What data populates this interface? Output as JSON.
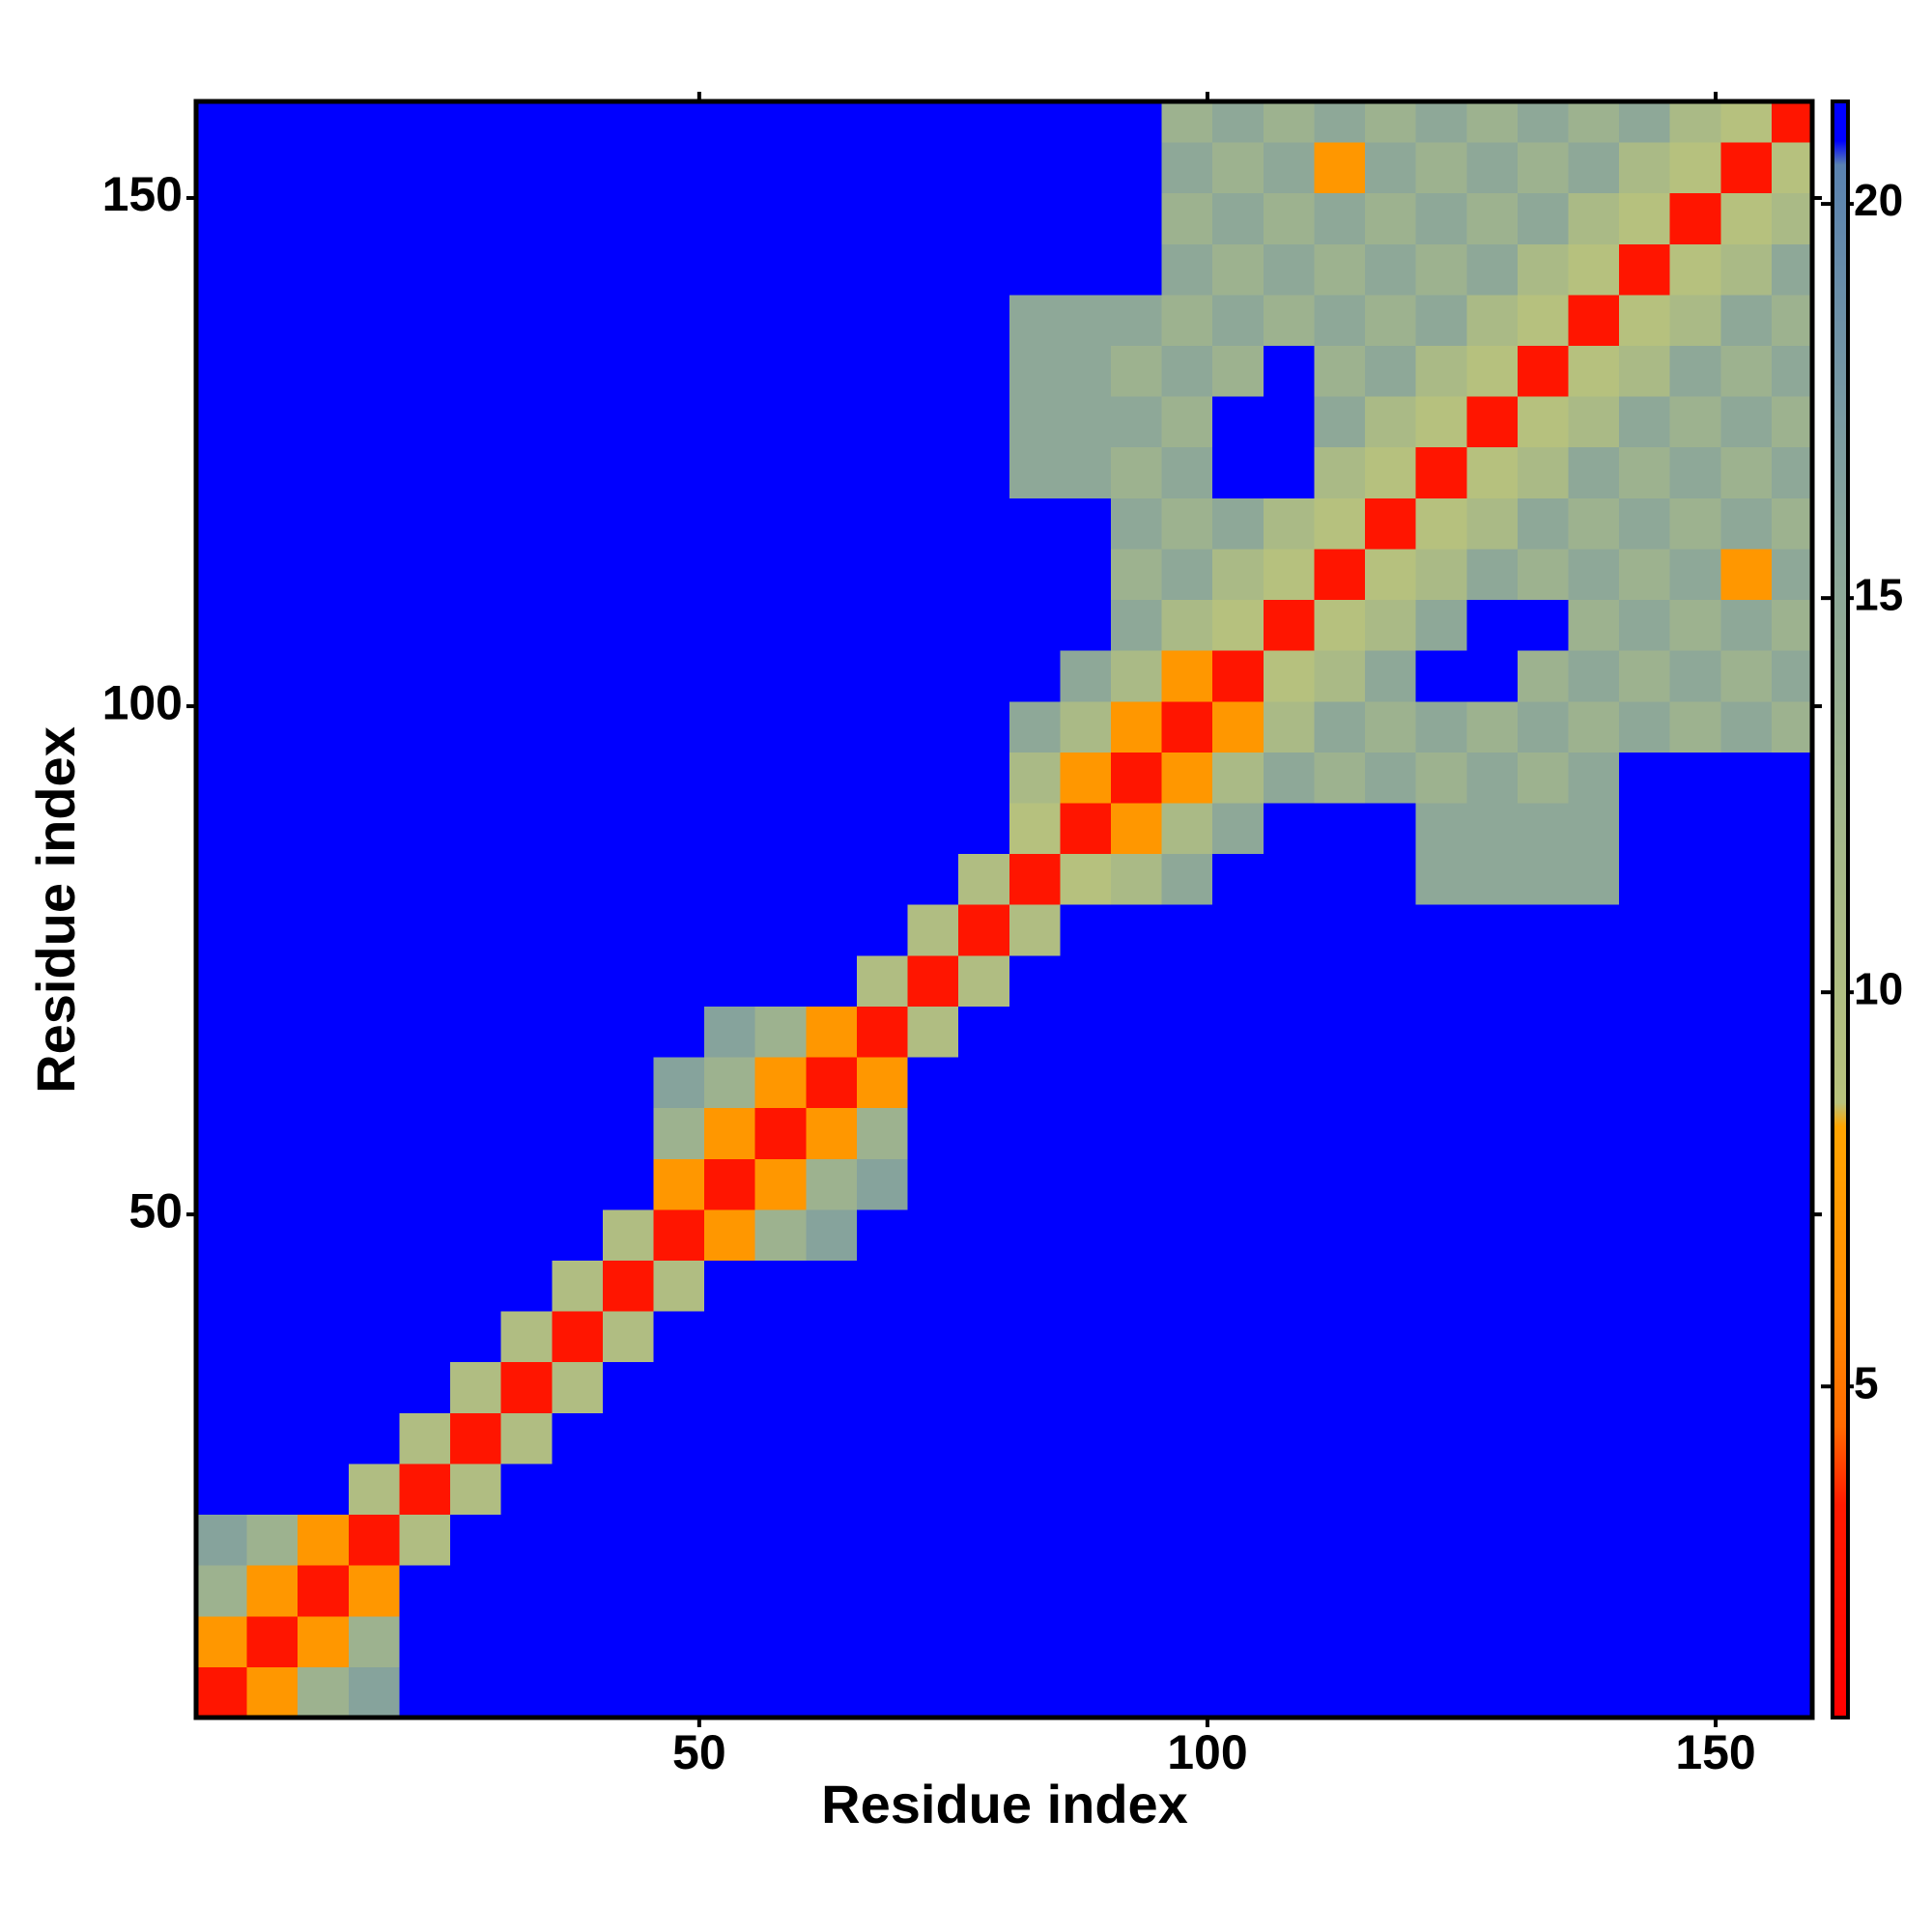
{
  "chart_data": {
    "type": "heatmap",
    "xlabel": "Residue index",
    "ylabel": "Residue index",
    "xlim": [
      0.5,
      159.5
    ],
    "ylim": [
      0.5,
      159.5
    ],
    "xticks": [
      50,
      100,
      150
    ],
    "yticks": [
      50,
      100,
      150
    ],
    "bins": [
      0.5,
      5.5,
      10.5,
      15.5,
      20.5,
      25.5,
      30.5,
      35.5,
      40.5,
      45.5,
      50.5,
      55.5,
      60.5,
      65.5,
      70.5,
      75.5,
      80.5,
      85.5,
      90.5,
      95.5,
      100.5,
      105.5,
      110.5,
      115.5,
      120.5,
      125.5,
      130.5,
      135.5,
      140.5,
      145.5,
      150.5,
      155.5,
      159.5
    ],
    "z": [
      [
        3,
        7,
        13,
        16,
        21,
        21,
        21,
        21,
        21,
        21,
        21,
        21,
        21,
        21,
        21,
        21,
        21,
        21,
        21,
        21,
        21,
        21,
        21,
        21,
        21,
        21,
        21,
        21,
        21,
        21,
        21,
        21
      ],
      [
        7,
        3,
        7,
        13,
        21,
        21,
        21,
        21,
        21,
        21,
        21,
        21,
        21,
        21,
        21,
        21,
        21,
        21,
        21,
        21,
        21,
        21,
        21,
        21,
        21,
        21,
        21,
        21,
        21,
        21,
        21,
        21
      ],
      [
        13,
        7,
        3,
        7,
        21,
        21,
        21,
        21,
        21,
        21,
        21,
        21,
        21,
        21,
        21,
        21,
        21,
        21,
        21,
        21,
        21,
        21,
        21,
        21,
        21,
        21,
        21,
        21,
        21,
        21,
        21,
        21
      ],
      [
        16,
        13,
        7,
        3,
        10,
        21,
        21,
        21,
        21,
        21,
        21,
        21,
        21,
        21,
        21,
        21,
        21,
        21,
        21,
        21,
        21,
        21,
        21,
        21,
        21,
        21,
        21,
        21,
        21,
        21,
        21,
        21
      ],
      [
        21,
        21,
        21,
        10,
        3,
        10,
        21,
        21,
        21,
        21,
        21,
        21,
        21,
        21,
        21,
        21,
        21,
        21,
        21,
        21,
        21,
        21,
        21,
        21,
        21,
        21,
        21,
        21,
        21,
        21,
        21,
        21
      ],
      [
        21,
        21,
        21,
        21,
        10,
        3,
        10,
        21,
        21,
        21,
        21,
        21,
        21,
        21,
        21,
        21,
        21,
        21,
        21,
        21,
        21,
        21,
        21,
        21,
        21,
        21,
        21,
        21,
        21,
        21,
        21,
        21
      ],
      [
        21,
        21,
        21,
        21,
        21,
        10,
        3,
        10,
        21,
        21,
        21,
        21,
        21,
        21,
        21,
        21,
        21,
        21,
        21,
        21,
        21,
        21,
        21,
        21,
        21,
        21,
        21,
        21,
        21,
        21,
        21,
        21
      ],
      [
        21,
        21,
        21,
        21,
        21,
        21,
        10,
        3,
        10,
        21,
        21,
        21,
        21,
        21,
        21,
        21,
        21,
        21,
        21,
        21,
        21,
        21,
        21,
        21,
        21,
        21,
        21,
        21,
        21,
        21,
        21,
        21
      ],
      [
        21,
        21,
        21,
        21,
        21,
        21,
        21,
        10,
        3,
        10,
        21,
        21,
        21,
        21,
        21,
        21,
        21,
        21,
        21,
        21,
        21,
        21,
        21,
        21,
        21,
        21,
        21,
        21,
        21,
        21,
        21,
        21
      ],
      [
        21,
        21,
        21,
        21,
        21,
        21,
        21,
        21,
        10,
        3,
        7,
        13,
        16,
        21,
        21,
        21,
        21,
        21,
        21,
        21,
        21,
        21,
        21,
        21,
        21,
        21,
        21,
        21,
        21,
        21,
        21,
        21
      ],
      [
        21,
        21,
        21,
        21,
        21,
        21,
        21,
        21,
        21,
        7,
        3,
        7,
        13,
        16,
        21,
        21,
        21,
        21,
        21,
        21,
        21,
        21,
        21,
        21,
        21,
        21,
        21,
        21,
        21,
        21,
        21,
        21
      ],
      [
        21,
        21,
        21,
        21,
        21,
        21,
        21,
        21,
        21,
        13,
        7,
        3,
        7,
        13,
        21,
        21,
        21,
        21,
        21,
        21,
        21,
        21,
        21,
        21,
        21,
        21,
        21,
        21,
        21,
        21,
        21,
        21
      ],
      [
        21,
        21,
        21,
        21,
        21,
        21,
        21,
        21,
        21,
        16,
        13,
        7,
        3,
        7,
        21,
        21,
        21,
        21,
        21,
        21,
        21,
        21,
        21,
        21,
        21,
        21,
        21,
        21,
        21,
        21,
        21,
        21
      ],
      [
        21,
        21,
        21,
        21,
        21,
        21,
        21,
        21,
        21,
        21,
        16,
        13,
        7,
        3,
        10,
        21,
        21,
        21,
        21,
        21,
        21,
        21,
        21,
        21,
        21,
        21,
        21,
        21,
        21,
        21,
        21,
        21
      ],
      [
        21,
        21,
        21,
        21,
        21,
        21,
        21,
        21,
        21,
        21,
        21,
        21,
        21,
        10,
        3,
        10,
        21,
        21,
        21,
        21,
        21,
        21,
        21,
        21,
        21,
        21,
        21,
        21,
        21,
        21,
        21,
        21
      ],
      [
        21,
        21,
        21,
        21,
        21,
        21,
        21,
        21,
        21,
        21,
        21,
        21,
        21,
        21,
        10,
        3,
        10,
        21,
        21,
        21,
        21,
        21,
        21,
        21,
        21,
        21,
        21,
        21,
        21,
        21,
        21,
        21
      ],
      [
        21,
        21,
        21,
        21,
        21,
        21,
        21,
        21,
        21,
        21,
        21,
        21,
        21,
        21,
        21,
        10,
        3,
        9,
        11,
        15,
        21,
        21,
        21,
        21,
        15,
        15,
        15,
        15,
        21,
        21,
        21,
        21
      ],
      [
        21,
        21,
        21,
        21,
        21,
        21,
        21,
        21,
        21,
        21,
        21,
        21,
        21,
        21,
        21,
        21,
        9,
        3,
        7,
        11,
        15,
        21,
        21,
        21,
        15,
        15,
        15,
        15,
        21,
        21,
        21,
        21
      ],
      [
        21,
        21,
        21,
        21,
        21,
        21,
        21,
        21,
        21,
        21,
        21,
        21,
        21,
        21,
        21,
        21,
        11,
        7,
        3,
        7,
        11,
        15,
        13,
        15,
        13,
        15,
        13,
        15,
        21,
        21,
        21,
        21
      ],
      [
        21,
        21,
        21,
        21,
        21,
        21,
        21,
        21,
        21,
        21,
        21,
        21,
        21,
        21,
        21,
        21,
        15,
        11,
        7,
        3,
        7,
        11,
        15,
        13,
        15,
        13,
        15,
        13,
        15,
        13,
        15,
        13
      ],
      [
        21,
        21,
        21,
        21,
        21,
        21,
        21,
        21,
        21,
        21,
        21,
        21,
        21,
        21,
        21,
        21,
        21,
        15,
        11,
        7,
        3,
        9,
        11,
        15,
        21,
        21,
        13,
        15,
        13,
        15,
        13,
        15
      ],
      [
        21,
        21,
        21,
        21,
        21,
        21,
        21,
        21,
        21,
        21,
        21,
        21,
        21,
        21,
        21,
        21,
        21,
        21,
        15,
        11,
        9,
        3,
        9,
        11,
        15,
        21,
        21,
        13,
        15,
        13,
        15,
        13
      ],
      [
        21,
        21,
        21,
        21,
        21,
        21,
        21,
        21,
        21,
        21,
        21,
        21,
        21,
        21,
        21,
        21,
        21,
        21,
        13,
        15,
        11,
        9,
        3,
        9,
        11,
        15,
        13,
        15,
        13,
        15,
        7,
        15
      ],
      [
        21,
        21,
        21,
        21,
        21,
        21,
        21,
        21,
        21,
        21,
        21,
        21,
        21,
        21,
        21,
        21,
        21,
        21,
        15,
        13,
        15,
        11,
        9,
        3,
        9,
        11,
        15,
        13,
        15,
        13,
        15,
        13
      ],
      [
        21,
        21,
        21,
        21,
        21,
        21,
        21,
        21,
        21,
        21,
        21,
        21,
        21,
        21,
        21,
        21,
        15,
        15,
        13,
        15,
        21,
        21,
        11,
        9,
        3,
        9,
        11,
        15,
        13,
        15,
        13,
        15
      ],
      [
        21,
        21,
        21,
        21,
        21,
        21,
        21,
        21,
        21,
        21,
        21,
        21,
        21,
        21,
        21,
        21,
        15,
        15,
        15,
        13,
        21,
        21,
        15,
        11,
        9,
        3,
        9,
        11,
        15,
        13,
        15,
        13
      ],
      [
        21,
        21,
        21,
        21,
        21,
        21,
        21,
        21,
        21,
        21,
        21,
        21,
        21,
        21,
        21,
        21,
        15,
        15,
        13,
        15,
        13,
        21,
        13,
        15,
        11,
        9,
        3,
        9,
        11,
        15,
        13,
        15
      ],
      [
        21,
        21,
        21,
        21,
        21,
        21,
        21,
        21,
        21,
        21,
        21,
        21,
        21,
        21,
        21,
        21,
        15,
        15,
        15,
        13,
        15,
        13,
        15,
        13,
        15,
        11,
        9,
        3,
        9,
        11,
        15,
        13
      ],
      [
        21,
        21,
        21,
        21,
        21,
        21,
        21,
        21,
        21,
        21,
        21,
        21,
        21,
        21,
        21,
        21,
        21,
        21,
        21,
        15,
        13,
        15,
        13,
        15,
        13,
        15,
        11,
        9,
        3,
        9,
        11,
        15
      ],
      [
        21,
        21,
        21,
        21,
        21,
        21,
        21,
        21,
        21,
        21,
        21,
        21,
        21,
        21,
        21,
        21,
        21,
        21,
        21,
        13,
        15,
        13,
        15,
        13,
        15,
        13,
        15,
        11,
        9,
        3,
        9,
        11
      ],
      [
        21,
        21,
        21,
        21,
        21,
        21,
        21,
        21,
        21,
        21,
        21,
        21,
        21,
        21,
        21,
        21,
        21,
        21,
        21,
        15,
        13,
        15,
        7,
        15,
        13,
        15,
        13,
        15,
        11,
        9,
        3,
        9
      ],
      [
        21,
        21,
        21,
        21,
        21,
        21,
        21,
        21,
        21,
        21,
        21,
        21,
        21,
        21,
        21,
        21,
        21,
        21,
        21,
        13,
        15,
        13,
        15,
        13,
        15,
        13,
        15,
        13,
        15,
        11,
        9,
        3
      ]
    ],
    "colorbar": {
      "lim": [
        0.8,
        21.3
      ],
      "ticks": [
        5,
        10,
        15,
        20
      ],
      "stops": [
        [
          0.8,
          "#ff0000"
        ],
        [
          3.5,
          "#ff1a00"
        ],
        [
          4.5,
          "#ff6a00"
        ],
        [
          6,
          "#ff8c00"
        ],
        [
          8.3,
          "#ffa500"
        ],
        [
          8.6,
          "#b8c27c"
        ],
        [
          12,
          "#a4b78a"
        ],
        [
          16,
          "#86a39c"
        ],
        [
          20.5,
          "#5a82b0"
        ],
        [
          20.8,
          "#0000ff"
        ],
        [
          21.3,
          "#0000ff"
        ]
      ]
    }
  }
}
